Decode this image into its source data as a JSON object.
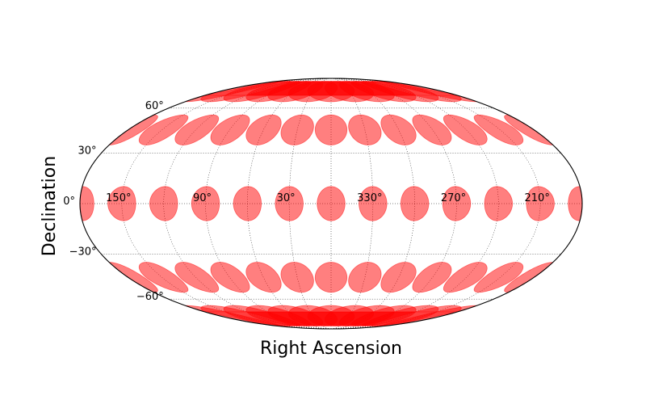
{
  "chart_data": {
    "type": "scatter",
    "projection": "mollweide",
    "xlabel": "Right Ascension",
    "ylabel": "Declination",
    "ra_tick_labels": [
      {
        "ra": 150,
        "text": "150°"
      },
      {
        "ra": 90,
        "text": "90°"
      },
      {
        "ra": 30,
        "text": "30°"
      },
      {
        "ra": 330,
        "text": "330°"
      },
      {
        "ra": 270,
        "text": "270°"
      },
      {
        "ra": 210,
        "text": "210°"
      }
    ],
    "dec_tick_labels": [
      {
        "dec": 60,
        "text": "60°"
      },
      {
        "dec": 30,
        "text": "30°"
      },
      {
        "dec": 0,
        "text": "0°"
      },
      {
        "dec": -30,
        "text": "−30°"
      },
      {
        "dec": -60,
        "text": "−60°"
      }
    ],
    "grid": true,
    "ra_grid_lines": [
      150,
      120,
      90,
      60,
      30,
      0,
      330,
      300,
      270,
      240,
      210
    ],
    "dec_grid_lines": [
      60,
      30,
      0,
      -30,
      -60
    ],
    "markers": {
      "shape": "circle",
      "radius_deg": 10,
      "color": "#ff0000",
      "alpha": 0.5,
      "ra_values": [
        180,
        150,
        120,
        90,
        60,
        30,
        0,
        330,
        300,
        270,
        240,
        210
      ],
      "dec_values": [
        75,
        45,
        0,
        -45,
        -75
      ]
    }
  }
}
